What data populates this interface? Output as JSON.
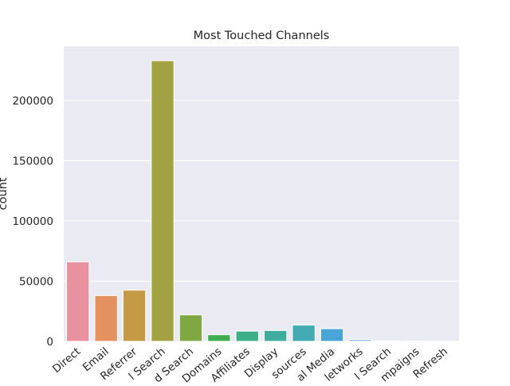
{
  "chart_data": {
    "type": "bar",
    "title": "Most Touched Channels",
    "xlabel": "",
    "ylabel": "count",
    "ylim": [
      0,
      245000
    ],
    "yticks": [
      0,
      50000,
      100000,
      150000,
      200000
    ],
    "ytick_labels": [
      "0",
      "50000",
      "100000",
      "150000",
      "200000"
    ],
    "grid": true,
    "categories": [
      "Direct",
      "Email",
      "Referrer",
      "l Search",
      "d Search",
      "Domains",
      "Affiliates",
      "Display",
      "sources",
      "al Media",
      "letworks",
      "l Search",
      "mpaigns",
      "Refresh"
    ],
    "values": [
      66000,
      38000,
      42500,
      233000,
      22000,
      5500,
      8500,
      9000,
      13500,
      10500,
      1500,
      300,
      200,
      100
    ],
    "colors": [
      "#e8919f",
      "#e4905f",
      "#c49a45",
      "#a2a242",
      "#7fa843",
      "#3fae50",
      "#3eae89",
      "#40ac9e",
      "#43aab4",
      "#4aa5d6",
      "#8eaee8",
      "#b8a7ea",
      "#dda3e6",
      "#e697c5"
    ]
  }
}
